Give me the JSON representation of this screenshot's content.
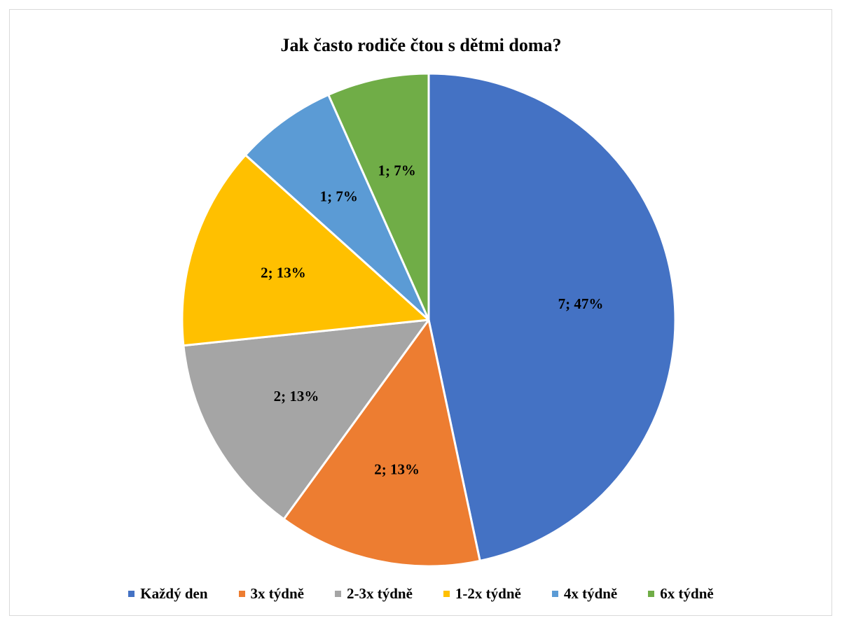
{
  "chart_data": {
    "type": "pie",
    "title": "Jak často rodiče čtou s dětmi doma?",
    "categories": [
      "Každý den",
      "3x týdně",
      "2-3x týdně",
      "1-2x týdně",
      "4x týdně",
      "6x týdně"
    ],
    "values": [
      7,
      2,
      2,
      2,
      1,
      1
    ],
    "percentages": [
      47,
      13,
      13,
      13,
      7,
      7
    ],
    "data_labels": [
      "7; 47%",
      "2; 13%",
      "2; 13%",
      "2; 13%",
      "1; 7%",
      "1; 7%"
    ],
    "colors": [
      "#4472C4",
      "#ED7D31",
      "#A5A5A5",
      "#FFC000",
      "#5B9BD5",
      "#70AD47"
    ],
    "start_angle": "12 o'clock",
    "direction": "clockwise",
    "legend_position": "bottom"
  }
}
